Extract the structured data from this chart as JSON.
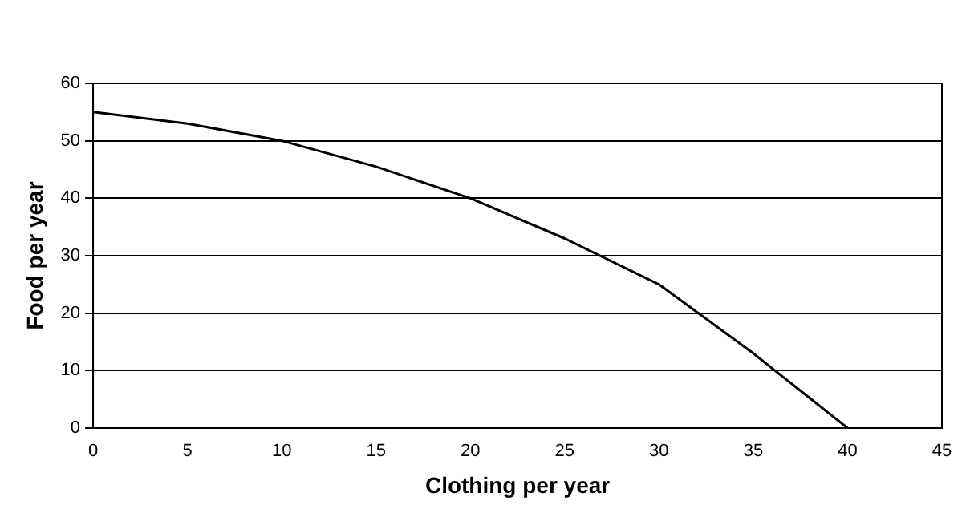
{
  "chart_data": {
    "type": "line",
    "xlabel": "Clothing per year",
    "ylabel": "Food per year",
    "x": [
      0,
      5,
      10,
      15,
      20,
      25,
      30,
      35,
      40
    ],
    "series": [
      {
        "color": "#000000",
        "values": [
          55,
          53,
          50,
          45.5,
          40,
          33,
          25,
          13,
          0
        ]
      }
    ],
    "xlim": [
      0,
      45
    ],
    "xticks": [
      0,
      5,
      10,
      15,
      20,
      25,
      30,
      35,
      40,
      45
    ],
    "ylim": [
      0,
      60
    ],
    "yticks": [
      0,
      10,
      20,
      30,
      40,
      50,
      60
    ],
    "grid": "y",
    "legend": false,
    "marker": "none",
    "line_style": "solid"
  }
}
